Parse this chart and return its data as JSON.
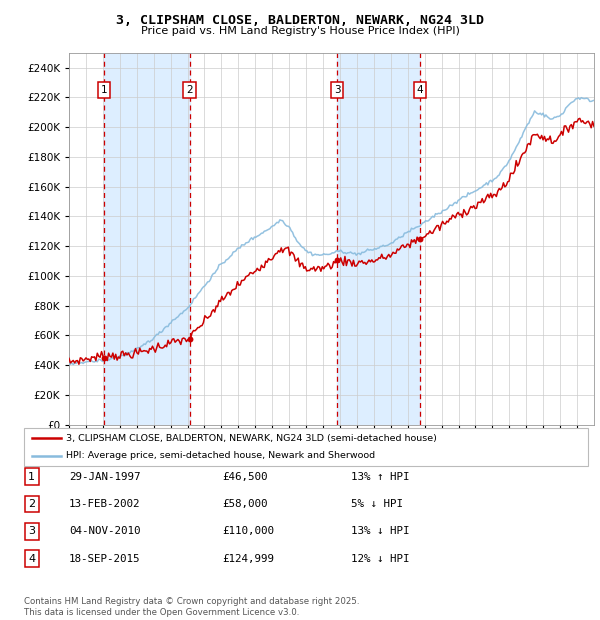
{
  "title": "3, CLIPSHAM CLOSE, BALDERTON, NEWARK, NG24 3LD",
  "subtitle": "Price paid vs. HM Land Registry's House Price Index (HPI)",
  "table_rows": [
    {
      "num": "1",
      "date": "29-JAN-1997",
      "price": "£46,500",
      "hpi": "13% ↑ HPI"
    },
    {
      "num": "2",
      "date": "13-FEB-2002",
      "price": "£58,000",
      "hpi": "5% ↓ HPI"
    },
    {
      "num": "3",
      "date": "04-NOV-2010",
      "price": "£110,000",
      "hpi": "13% ↓ HPI"
    },
    {
      "num": "4",
      "date": "18-SEP-2015",
      "price": "£124,999",
      "hpi": "12% ↓ HPI"
    }
  ],
  "legend_property": "3, CLIPSHAM CLOSE, BALDERTON, NEWARK, NG24 3LD (semi-detached house)",
  "legend_hpi": "HPI: Average price, semi-detached house, Newark and Sherwood",
  "footer": "Contains HM Land Registry data © Crown copyright and database right 2025.\nThis data is licensed under the Open Government Licence v3.0.",
  "property_color": "#cc0000",
  "hpi_color": "#88bbdd",
  "vline_color": "#cc0000",
  "shade_color": "#ddeeff",
  "ylim": [
    0,
    250000
  ],
  "yticks": [
    0,
    20000,
    40000,
    60000,
    80000,
    100000,
    120000,
    140000,
    160000,
    180000,
    200000,
    220000,
    240000
  ],
  "xstart": 1995.0,
  "xend": 2026.0,
  "sale_dates_f": [
    1997.08,
    2002.12,
    2010.84,
    2015.72
  ],
  "sale_prices": [
    46500,
    58000,
    110000,
    124999
  ]
}
